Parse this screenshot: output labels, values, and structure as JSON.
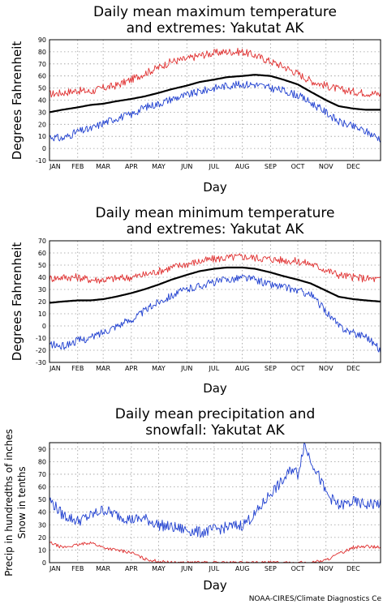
{
  "credit": "NOAA-CIRES/Climate Diagnostics Ce",
  "colors": {
    "max_extreme": "#e03030",
    "mean": "#000000",
    "min_extreme": "#2040d0",
    "precip": "#2040d0",
    "snow": "#e03030"
  },
  "chart_data": [
    {
      "type": "line",
      "title_line1": "Daily mean maximum temperature",
      "title_line2": "and extremes: Yakutat AK",
      "ylabel": "Degrees Fahrenheit",
      "xlabel": "Day",
      "months": [
        "JAN",
        "FEB",
        "MAR",
        "APR",
        "MAY",
        "JUN",
        "JUL",
        "AUG",
        "SEP",
        "OCT",
        "NOV",
        "DEC"
      ],
      "yticks": [
        -10,
        0,
        10,
        20,
        30,
        40,
        50,
        60,
        70,
        80,
        90
      ],
      "ylim": [
        -10,
        90
      ],
      "xlim": [
        1,
        365
      ],
      "grid": true,
      "series": [
        {
          "role": "max_extreme",
          "x": [
            1,
            15,
            32,
            46,
            60,
            74,
            91,
            105,
            121,
            135,
            152,
            166,
            182,
            196,
            213,
            227,
            244,
            258,
            274,
            288,
            305,
            319,
            335,
            349,
            365
          ],
          "values": [
            45,
            46,
            48,
            47,
            50,
            52,
            57,
            62,
            67,
            72,
            74,
            77,
            79,
            80,
            80,
            77,
            72,
            68,
            62,
            56,
            52,
            49,
            47,
            46,
            45
          ]
        },
        {
          "role": "mean",
          "x": [
            1,
            15,
            32,
            46,
            60,
            74,
            91,
            105,
            121,
            135,
            152,
            166,
            182,
            196,
            213,
            227,
            244,
            258,
            274,
            288,
            305,
            319,
            335,
            349,
            365
          ],
          "values": [
            30,
            32,
            34,
            36,
            37,
            39,
            41,
            43,
            46,
            49,
            52,
            55,
            57,
            59,
            60,
            61,
            60,
            57,
            53,
            47,
            40,
            35,
            33,
            32,
            32
          ]
        },
        {
          "role": "min_extreme",
          "x": [
            1,
            15,
            32,
            46,
            60,
            74,
            91,
            105,
            121,
            135,
            152,
            166,
            182,
            196,
            213,
            227,
            244,
            258,
            274,
            288,
            305,
            319,
            335,
            349,
            365
          ],
          "values": [
            10,
            8,
            14,
            16,
            21,
            25,
            28,
            34,
            37,
            41,
            44,
            47,
            50,
            52,
            53,
            53,
            50,
            48,
            44,
            38,
            30,
            22,
            18,
            14,
            8
          ]
        }
      ]
    },
    {
      "type": "line",
      "title_line1": "Daily mean minimum temperature",
      "title_line2": "and extremes: Yakutat AK",
      "ylabel": "Degrees Fahrenheit",
      "xlabel": "Day",
      "months": [
        "JAN",
        "FEB",
        "MAR",
        "APR",
        "MAY",
        "JUN",
        "JUL",
        "AUG",
        "SEP",
        "OCT",
        "NOV",
        "DEC"
      ],
      "yticks": [
        -30,
        -20,
        -10,
        0,
        10,
        20,
        30,
        40,
        50,
        60,
        70
      ],
      "ylim": [
        -30,
        70
      ],
      "xlim": [
        1,
        365
      ],
      "grid": true,
      "series": [
        {
          "role": "max_extreme",
          "x": [
            1,
            15,
            32,
            46,
            60,
            74,
            91,
            105,
            121,
            135,
            152,
            166,
            182,
            196,
            213,
            227,
            244,
            258,
            274,
            288,
            305,
            319,
            335,
            349,
            365
          ],
          "values": [
            39,
            40,
            40,
            38,
            38,
            39,
            40,
            42,
            45,
            48,
            51,
            53,
            55,
            56,
            57,
            56,
            55,
            54,
            53,
            51,
            46,
            42,
            40,
            39,
            38
          ]
        },
        {
          "role": "mean",
          "x": [
            1,
            15,
            32,
            46,
            60,
            74,
            91,
            105,
            121,
            135,
            152,
            166,
            182,
            196,
            213,
            227,
            244,
            258,
            274,
            288,
            305,
            319,
            335,
            349,
            365
          ],
          "values": [
            19,
            20,
            21,
            21,
            22,
            24,
            27,
            30,
            34,
            38,
            42,
            45,
            47,
            48,
            48,
            47,
            44,
            41,
            38,
            35,
            29,
            24,
            22,
            21,
            20
          ]
        },
        {
          "role": "min_extreme",
          "x": [
            1,
            15,
            32,
            46,
            60,
            74,
            91,
            105,
            121,
            135,
            152,
            166,
            182,
            196,
            213,
            227,
            244,
            258,
            274,
            288,
            305,
            319,
            335,
            349,
            365
          ],
          "values": [
            -15,
            -17,
            -12,
            -10,
            -5,
            0,
            5,
            12,
            20,
            25,
            30,
            33,
            36,
            38,
            40,
            38,
            34,
            32,
            29,
            26,
            12,
            0,
            -6,
            -8,
            -20
          ]
        }
      ]
    },
    {
      "type": "line",
      "title_line1": "Daily mean precipitation and",
      "title_line2": "snowfall: Yakutat AK",
      "ylabel_line1": "Precip in hundredths of inches",
      "ylabel_line2": "Snow in tenths",
      "xlabel": "Day",
      "months": [
        "JAN",
        "FEB",
        "MAR",
        "APR",
        "MAY",
        "JUN",
        "JUL",
        "AUG",
        "SEP",
        "OCT",
        "NOV",
        "DEC"
      ],
      "yticks": [
        0,
        10,
        20,
        30,
        40,
        50,
        60,
        70,
        80,
        90
      ],
      "ylim": [
        0,
        95
      ],
      "xlim": [
        1,
        365
      ],
      "grid": true,
      "series": [
        {
          "role": "precip",
          "x": [
            1,
            15,
            32,
            46,
            60,
            74,
            91,
            105,
            121,
            135,
            152,
            166,
            182,
            196,
            213,
            227,
            244,
            258,
            268,
            274,
            281,
            288,
            295,
            305,
            319,
            335,
            349,
            365
          ],
          "values": [
            50,
            38,
            33,
            37,
            42,
            38,
            34,
            35,
            30,
            28,
            26,
            24,
            26,
            28,
            30,
            38,
            55,
            65,
            75,
            70,
            94,
            82,
            72,
            55,
            45,
            48,
            46,
            47
          ]
        },
        {
          "role": "snow",
          "x": [
            1,
            15,
            32,
            46,
            60,
            74,
            91,
            105,
            121,
            135,
            152,
            166,
            182,
            196,
            213,
            227,
            244,
            258,
            274,
            288,
            305,
            319,
            335,
            349,
            365
          ],
          "values": [
            16,
            12,
            14,
            16,
            12,
            10,
            8,
            3,
            1,
            0,
            0,
            0,
            0,
            0,
            0,
            0,
            0,
            0,
            0,
            0,
            2,
            7,
            12,
            13,
            12
          ]
        }
      ]
    }
  ]
}
